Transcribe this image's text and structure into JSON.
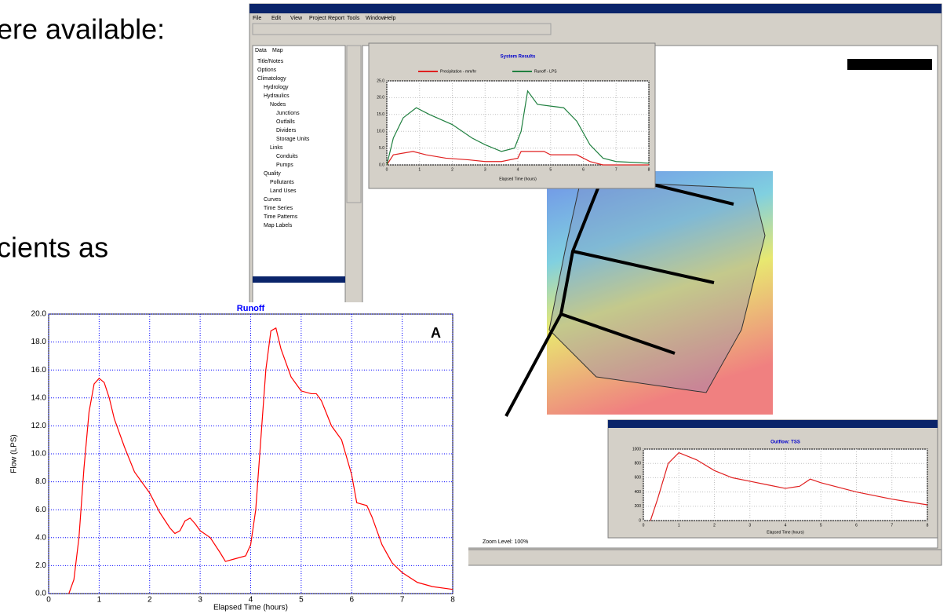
{
  "slide": {
    "line_1": "ere available:",
    "line_2": "cients as"
  },
  "screenshot": {
    "menu": [
      "File",
      "Edit",
      "View",
      "Project",
      "Report",
      "Tools",
      "Window",
      "Help"
    ],
    "tabs": [
      "Data",
      "Map"
    ],
    "tree": [
      "Title/Notes",
      "Options",
      "Climatology",
      "Hydrology",
      "Hydraulics",
      "Nodes",
      "Junctions",
      "Outfalls",
      "Dividers",
      "Storage Units",
      "Links",
      "Conduits",
      "Pumps",
      "Quality",
      "Pollutants",
      "Land Uses",
      "Curves",
      "Time Series",
      "Time Patterns",
      "Map Labels"
    ],
    "status": "Zoom Level: 100%"
  },
  "chart_data": [
    {
      "type": "line",
      "title": "Runoff",
      "xlabel": "Elapsed Time (hours)",
      "ylabel": "Flow (LPS)",
      "annotation": "A",
      "xlim": [
        0,
        8
      ],
      "ylim": [
        0,
        20
      ],
      "xticks": [
        0,
        1,
        2,
        3,
        4,
        5,
        6,
        7,
        8
      ],
      "yticks": [
        {
          "value": 0,
          "label": "0.0"
        },
        {
          "value": 2,
          "label": "2.0"
        },
        {
          "value": 4,
          "label": "4.0"
        },
        {
          "value": 6,
          "label": "6.0"
        },
        {
          "value": 8,
          "label": "8.0"
        },
        {
          "value": 10,
          "label": "10.0"
        },
        {
          "value": 12,
          "label": "12.0"
        },
        {
          "value": 14,
          "label": "14.0"
        },
        {
          "value": 16,
          "label": "16.0"
        },
        {
          "value": 18,
          "label": "18.0"
        },
        {
          "value": 20,
          "label": "20.0"
        }
      ],
      "grid": true,
      "grid_color": "#0000ff",
      "title_color": "#0000ff",
      "series": [
        {
          "color": "#ff0000",
          "x": [
            0.4,
            0.5,
            0.6,
            0.7,
            0.8,
            0.9,
            1.0,
            1.1,
            1.2,
            1.3,
            1.5,
            1.7,
            2.0,
            2.2,
            2.4,
            2.5,
            2.6,
            2.7,
            2.8,
            2.9,
            3.0,
            3.2,
            3.4,
            3.5,
            3.7,
            3.9,
            4.0,
            4.1,
            4.2,
            4.3,
            4.4,
            4.5,
            4.6,
            4.8,
            5.0,
            5.2,
            5.3,
            5.4,
            5.6,
            5.8,
            6.0,
            6.1,
            6.3,
            6.4,
            6.6,
            6.8,
            7.0,
            7.3,
            7.6,
            8.0
          ],
          "values": [
            0,
            1,
            4,
            9,
            13,
            15,
            15.4,
            15.1,
            14,
            12.5,
            10.5,
            8.7,
            7.2,
            5.8,
            4.7,
            4.3,
            4.5,
            5.2,
            5.4,
            5.0,
            4.5,
            4.0,
            2.9,
            2.3,
            2.5,
            2.7,
            3.5,
            6,
            11,
            16,
            18.8,
            19,
            17.5,
            15.5,
            14.5,
            14.3,
            14.3,
            13.8,
            12,
            11,
            8.5,
            6.5,
            6.3,
            5.5,
            3.5,
            2.2,
            1.5,
            0.8,
            0.5,
            0.3
          ]
        }
      ]
    },
    {
      "type": "line",
      "title": "System Results",
      "xlabel": "Elapsed Time (hours)",
      "xlim": [
        0,
        8
      ],
      "ylim": [
        0,
        25
      ],
      "xticks": [
        0,
        1,
        2,
        3,
        4,
        5,
        6,
        7,
        8
      ],
      "yticks": [
        {
          "value": 0,
          "label": "0.0"
        },
        {
          "value": 5,
          "label": "5.0"
        },
        {
          "value": 10,
          "label": "10.0"
        },
        {
          "value": 15,
          "label": "15.0"
        },
        {
          "value": 20,
          "label": "20.0"
        },
        {
          "value": 25,
          "label": "25.0"
        }
      ],
      "grid": true,
      "grid_color": "#c0c0c0",
      "title_color": "#0000cc",
      "series": [
        {
          "name": "Precipitation - mm/hr",
          "color": "#e02020",
          "x": [
            0,
            0.2,
            0.8,
            1.2,
            1.8,
            2.5,
            3,
            3.5,
            4,
            4.1,
            4.8,
            5,
            5.8,
            6.2,
            6.6,
            8
          ],
          "values": [
            0,
            3,
            4,
            3,
            2,
            1.5,
            1,
            1,
            2,
            4,
            4,
            3,
            3,
            1,
            0,
            0
          ]
        },
        {
          "name": "Runoff - LPS",
          "color": "#208040",
          "x": [
            0,
            0.2,
            0.5,
            0.9,
            1.3,
            2,
            2.6,
            3,
            3.5,
            3.9,
            4.1,
            4.3,
            4.6,
            5,
            5.4,
            5.8,
            6.2,
            6.6,
            7,
            8
          ],
          "values": [
            0,
            8,
            14,
            17,
            15,
            12,
            8,
            6,
            4,
            5,
            10,
            22,
            18,
            17.5,
            17,
            13,
            6,
            2,
            1,
            0.5
          ]
        }
      ]
    },
    {
      "type": "line",
      "title": "Outflow: TSS",
      "xlabel": "Elapsed Time (hours)",
      "xlim": [
        0,
        8
      ],
      "ylim": [
        0,
        1000
      ],
      "xticks": [
        0,
        1,
        2,
        3,
        4,
        5,
        6,
        7,
        8
      ],
      "yticks": [
        0,
        200,
        400,
        600,
        800,
        1000
      ],
      "grid": true,
      "grid_color": "#c0c0c0",
      "title_color": "#0000cc",
      "series": [
        {
          "color": "#e02020",
          "x": [
            0.2,
            0.4,
            0.7,
            1,
            1.5,
            2,
            2.5,
            3,
            3.5,
            4,
            4.4,
            4.7,
            5,
            6,
            7,
            8
          ],
          "values": [
            0,
            300,
            800,
            950,
            850,
            700,
            600,
            550,
            500,
            450,
            480,
            580,
            530,
            400,
            300,
            220
          ]
        }
      ]
    }
  ]
}
